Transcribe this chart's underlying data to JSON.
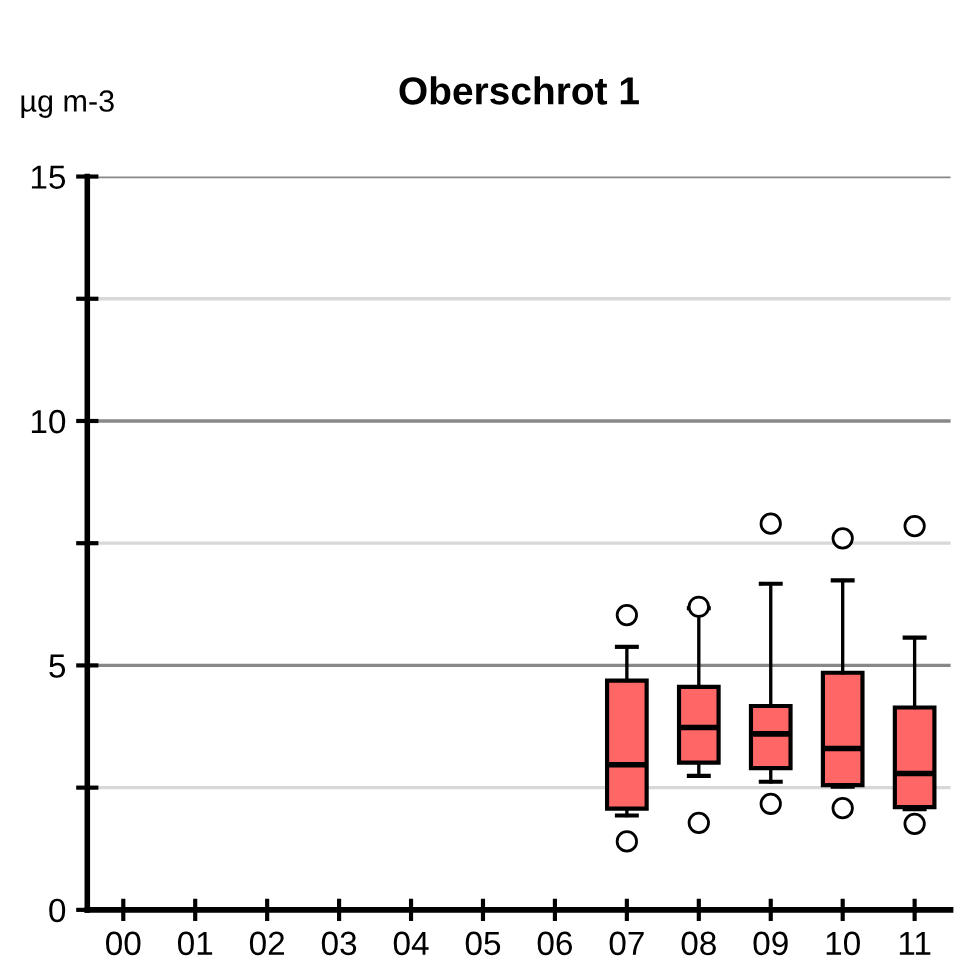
{
  "chart_data": {
    "type": "box",
    "title": "Oberschrot 1",
    "ylabel": "µg m-3",
    "categories": [
      "00",
      "01",
      "02",
      "03",
      "04",
      "05",
      "06",
      "07",
      "08",
      "09",
      "10",
      "11"
    ],
    "color": "#ff6666",
    "boxes": [
      {
        "low": 0,
        "q1": 0,
        "median": 0,
        "q3": 0,
        "high": 0
      },
      {
        "low": 0,
        "q1": 0,
        "median": 0,
        "q3": 0,
        "high": 0
      },
      {
        "low": 0,
        "q1": 0,
        "median": 0,
        "q3": 0,
        "high": 0
      },
      {
        "low": 0,
        "q1": 0,
        "median": 0,
        "q3": 0,
        "high": 0
      },
      {
        "low": 0,
        "q1": 0,
        "median": 0,
        "q3": 0,
        "high": 0
      },
      {
        "low": 0,
        "q1": 0,
        "median": 0,
        "q3": 0,
        "high": 0
      },
      {
        "low": 0,
        "q1": 0,
        "median": 0,
        "q3": 0,
        "high": 0
      },
      {
        "low": 1.93,
        "q1": 2.07,
        "median": 2.97,
        "q3": 4.69,
        "high": 5.38,
        "outliers": [
          6.03,
          1.4
        ]
      },
      {
        "low": 2.74,
        "q1": 3.01,
        "median": 3.73,
        "q3": 4.56,
        "high": 6.17,
        "outliers": [
          6.2,
          1.78
        ]
      },
      {
        "low": 2.62,
        "q1": 2.9,
        "median": 3.6,
        "q3": 4.17,
        "high": 6.67,
        "outliers": [
          7.9,
          2.17
        ]
      },
      {
        "low": 2.52,
        "q1": 2.55,
        "median": 3.3,
        "q3": 4.85,
        "high": 6.74,
        "outliers": [
          7.6,
          2.08
        ]
      },
      {
        "low": 2.06,
        "q1": 2.1,
        "median": 2.79,
        "q3": 4.14,
        "high": 5.57,
        "outliers": [
          7.85,
          1.76
        ]
      }
    ],
    "ylim": [
      0,
      15
    ],
    "yticks": [
      0,
      {
        "value": 2.5,
        "label": null
      },
      5,
      {
        "value": 7.5,
        "label": null
      },
      10,
      {
        "value": 12.5,
        "label": null
      },
      15
    ],
    "grid": "y"
  }
}
